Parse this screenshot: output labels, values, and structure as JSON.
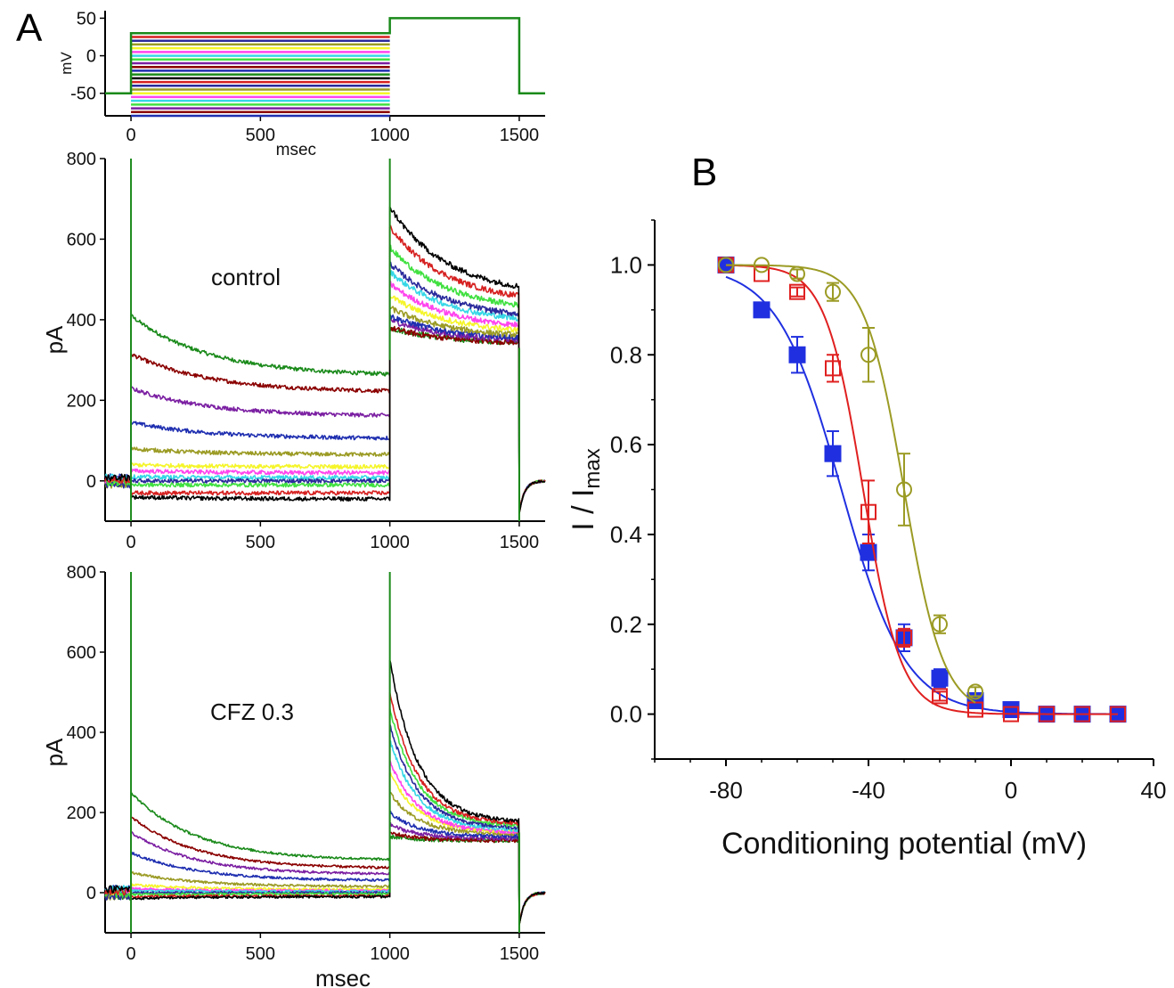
{
  "figure": {
    "panel_a_label": "A",
    "panel_b_label": "B"
  },
  "colors": {
    "axis": "#000000",
    "traces": [
      "#000000",
      "#d62020",
      "#2a2a9c",
      "#9b9b25",
      "#f5f52a",
      "#ff44ee",
      "#36d7e6",
      "#40e040",
      "#7b1fa2",
      "#8b0000",
      "#1f2fb0",
      "#1a8a1a"
    ],
    "step_line": "#1a8a1a",
    "series_b": [
      "#2030e0",
      "#e02020",
      "#9b9b25"
    ]
  },
  "chart_data": [
    {
      "id": "protocol",
      "type": "line",
      "title": "",
      "xlabel": "msec",
      "ylabel": "mV",
      "xlim": [
        -100,
        1600
      ],
      "ylim": [
        -80,
        60
      ],
      "xticks": [
        0,
        500,
        1000,
        1500
      ],
      "yticks": [
        -50,
        0,
        50
      ],
      "conditioning_levels_mV": [
        30,
        25,
        20,
        15,
        10,
        5,
        0,
        -5,
        -10,
        -15,
        -20,
        -25,
        -30,
        -35,
        -40,
        -45,
        -50,
        -55,
        -60,
        -65,
        -70,
        -75,
        -80
      ],
      "holding_mV": -50,
      "test_mV": 50,
      "steps_ms": {
        "conditioning_start": 0,
        "conditioning_end": 1000,
        "test_end": 1500,
        "end": 1600
      }
    },
    {
      "id": "control",
      "type": "line",
      "annotation": "control",
      "xlabel": "",
      "ylabel": "pA",
      "xlim": [
        -100,
        1600
      ],
      "ylim": [
        -100,
        800
      ],
      "xticks": [
        0,
        500,
        1000,
        1500
      ],
      "yticks": [
        0,
        200,
        400,
        600,
        800
      ],
      "series": [
        {
          "name": "trace-1",
          "color": "#1a8a1a",
          "early": 410,
          "late": 260,
          "test_peak": 380,
          "test_end": 340
        },
        {
          "name": "trace-2",
          "color": "#8b0000",
          "early": 315,
          "late": 220,
          "test_peak": 380,
          "test_end": 340
        },
        {
          "name": "trace-3",
          "color": "#7b1fa2",
          "early": 230,
          "late": 160,
          "test_peak": 400,
          "test_end": 345
        },
        {
          "name": "trace-4",
          "color": "#1f2fb0",
          "early": 145,
          "late": 105,
          "test_peak": 410,
          "test_end": 350
        },
        {
          "name": "trace-5",
          "color": "#9b9b25",
          "early": 80,
          "late": 65,
          "test_peak": 430,
          "test_end": 355
        },
        {
          "name": "trace-6",
          "color": "#f5f52a",
          "early": 40,
          "late": 35,
          "test_peak": 460,
          "test_end": 365
        },
        {
          "name": "trace-7",
          "color": "#ff44ee",
          "early": 25,
          "late": 20,
          "test_peak": 490,
          "test_end": 375
        },
        {
          "name": "trace-8",
          "color": "#36d7e6",
          "early": 10,
          "late": 8,
          "test_peak": 520,
          "test_end": 390
        },
        {
          "name": "trace-9",
          "color": "#2a2a9c",
          "early": 0,
          "late": 0,
          "test_peak": 540,
          "test_end": 400
        },
        {
          "name": "trace-10",
          "color": "#40e040",
          "early": -10,
          "late": -10,
          "test_peak": 580,
          "test_end": 420
        },
        {
          "name": "trace-11",
          "color": "#d62020",
          "early": -30,
          "late": -30,
          "test_peak": 630,
          "test_end": 440
        },
        {
          "name": "trace-12",
          "color": "#000000",
          "early": -40,
          "late": -45,
          "test_peak": 680,
          "test_end": 460
        }
      ]
    },
    {
      "id": "cfz",
      "type": "line",
      "annotation": "CFZ 0.3",
      "xlabel": "msec",
      "ylabel": "pA",
      "xlim": [
        -100,
        1600
      ],
      "ylim": [
        -100,
        800
      ],
      "xticks": [
        0,
        500,
        1000,
        1500
      ],
      "yticks": [
        0,
        200,
        400,
        600,
        800
      ],
      "series": [
        {
          "name": "trace-1",
          "color": "#1a8a1a",
          "early": 250,
          "late": 80,
          "test_peak": 140,
          "test_end": 130
        },
        {
          "name": "trace-2",
          "color": "#8b0000",
          "early": 190,
          "late": 60,
          "test_peak": 150,
          "test_end": 130
        },
        {
          "name": "trace-3",
          "color": "#7b1fa2",
          "early": 150,
          "late": 45,
          "test_peak": 170,
          "test_end": 135
        },
        {
          "name": "trace-4",
          "color": "#1f2fb0",
          "early": 100,
          "late": 30,
          "test_peak": 200,
          "test_end": 140
        },
        {
          "name": "trace-5",
          "color": "#9b9b25",
          "early": 50,
          "late": 15,
          "test_peak": 250,
          "test_end": 145
        },
        {
          "name": "trace-6",
          "color": "#f5f52a",
          "early": 20,
          "late": 8,
          "test_peak": 300,
          "test_end": 150
        },
        {
          "name": "trace-7",
          "color": "#ff44ee",
          "early": 10,
          "late": 5,
          "test_peak": 330,
          "test_end": 150
        },
        {
          "name": "trace-8",
          "color": "#36d7e6",
          "early": 5,
          "late": 3,
          "test_peak": 380,
          "test_end": 155
        },
        {
          "name": "trace-9",
          "color": "#2a2a9c",
          "early": 0,
          "late": 0,
          "test_peak": 420,
          "test_end": 160
        },
        {
          "name": "trace-10",
          "color": "#40e040",
          "early": -5,
          "late": -3,
          "test_peak": 460,
          "test_end": 165
        },
        {
          "name": "trace-11",
          "color": "#d62020",
          "early": -10,
          "late": -8,
          "test_peak": 500,
          "test_end": 170
        },
        {
          "name": "trace-12",
          "color": "#000000",
          "early": -15,
          "late": -10,
          "test_peak": 580,
          "test_end": 175
        }
      ]
    },
    {
      "id": "inactivation",
      "type": "scatter",
      "title": "",
      "xlabel": "Conditioning potential (mV)",
      "ylabel": "I / I",
      "ylabel_subscript": "max",
      "xlim": [
        -100,
        40
      ],
      "ylim": [
        -0.1,
        1.1
      ],
      "xticks": [
        -80,
        -40,
        0,
        40
      ],
      "yticks": [
        0.0,
        0.2,
        0.4,
        0.6,
        0.8,
        1.0
      ],
      "ytick_labels": [
        "0.0",
        "0.2",
        "0.4",
        "0.6",
        "0.8",
        "1.0"
      ],
      "series": [
        {
          "name": "filled-square",
          "marker": "square-filled",
          "color": "#2030e0",
          "x": [
            -80,
            -70,
            -60,
            -50,
            -40,
            -30,
            -20,
            -10,
            0,
            10,
            20,
            30
          ],
          "y": [
            1.0,
            0.9,
            0.8,
            0.58,
            0.36,
            0.17,
            0.08,
            0.03,
            0.01,
            0.0,
            0.0,
            0.0
          ],
          "err": [
            0.0,
            0.0,
            0.04,
            0.05,
            0.04,
            0.03,
            0.02,
            0.01,
            0.0,
            0.0,
            0.0,
            0.0
          ],
          "v_half": -47.6,
          "k": 9.0
        },
        {
          "name": "open-square",
          "marker": "square-open",
          "color": "#e02020",
          "x": [
            -80,
            -70,
            -60,
            -50,
            -40,
            -30,
            -20,
            -10,
            0,
            10,
            20,
            30
          ],
          "y": [
            1.0,
            0.98,
            0.94,
            0.77,
            0.45,
            0.17,
            0.04,
            0.01,
            0.0,
            0.0,
            0.0,
            0.0
          ],
          "err": [
            0.0,
            0.0,
            0.01,
            0.03,
            0.07,
            0.02,
            0.01,
            0.0,
            0.0,
            0.0,
            0.0,
            0.0
          ],
          "v_half": -41.5,
          "k": 5.3
        },
        {
          "name": "open-circle",
          "marker": "circle-open",
          "color": "#9b9b25",
          "x": [
            -80,
            -70,
            -60,
            -50,
            -40,
            -30,
            -20,
            -10
          ],
          "y": [
            1.0,
            1.0,
            0.98,
            0.94,
            0.8,
            0.5,
            0.2,
            0.05
          ],
          "err": [
            0.0,
            0.0,
            0.01,
            0.02,
            0.06,
            0.08,
            0.02,
            0.01
          ],
          "v_half": -30.0,
          "k": 5.5
        }
      ]
    }
  ]
}
